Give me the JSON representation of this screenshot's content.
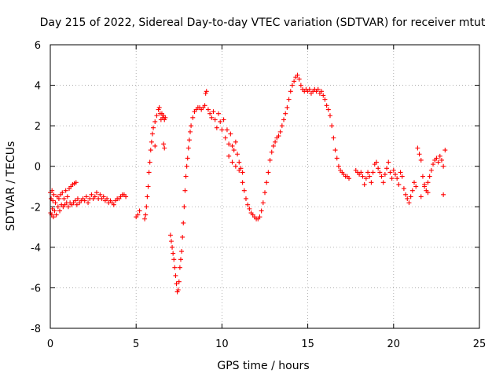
{
  "chart_data": {
    "type": "scatter",
    "title": "Day 215 of 2022, Sidereal Day-to-day VTEC variation (SDTVAR) for receiver mtut",
    "xlabel": "GPS time / hours",
    "ylabel": "SDTVAR / TECUs",
    "xlim": [
      0,
      25
    ],
    "ylim": [
      -8,
      6
    ],
    "xticks": [
      0,
      5,
      10,
      15,
      20,
      25
    ],
    "yticks": [
      -8,
      -6,
      -4,
      -2,
      0,
      2,
      4,
      6
    ],
    "xtick_labels": [
      "0",
      "5",
      "10",
      "15",
      "20",
      "25"
    ],
    "ytick_labels": [
      "-8",
      "-6",
      "-4",
      "-2",
      "0",
      "2",
      "4",
      "6"
    ],
    "grid": true,
    "marker": "+",
    "marker_color": "#ff0000",
    "series": [
      {
        "name": "SDTVAR",
        "points": [
          [
            0.0,
            -1.3
          ],
          [
            0.02,
            -2.3
          ],
          [
            0.05,
            -1.6
          ],
          [
            0.08,
            -2.4
          ],
          [
            0.1,
            -1.2
          ],
          [
            0.12,
            -2.1
          ],
          [
            0.15,
            -1.7
          ],
          [
            0.18,
            -2.5
          ],
          [
            0.2,
            -1.4
          ],
          [
            0.25,
            -2.2
          ],
          [
            0.3,
            -1.8
          ],
          [
            0.35,
            -2.4
          ],
          [
            0.4,
            -1.5
          ],
          [
            0.45,
            -2.0
          ],
          [
            0.5,
            -1.6
          ],
          [
            0.55,
            -2.2
          ],
          [
            0.6,
            -1.4
          ],
          [
            0.65,
            -1.9
          ],
          [
            0.7,
            -1.3
          ],
          [
            0.75,
            -2.0
          ],
          [
            0.8,
            -1.6
          ],
          [
            0.85,
            -1.9
          ],
          [
            0.9,
            -1.2
          ],
          [
            0.95,
            -1.8
          ],
          [
            1.0,
            -1.5
          ],
          [
            1.05,
            -2.0
          ],
          [
            1.1,
            -1.1
          ],
          [
            1.15,
            -1.8
          ],
          [
            1.2,
            -1.0
          ],
          [
            1.25,
            -1.9
          ],
          [
            1.3,
            -0.9
          ],
          [
            1.35,
            -1.8
          ],
          [
            1.4,
            -0.85
          ],
          [
            1.45,
            -1.7
          ],
          [
            1.5,
            -0.8
          ],
          [
            1.55,
            -1.9
          ],
          [
            1.6,
            -1.6
          ],
          [
            1.7,
            -1.8
          ],
          [
            1.8,
            -1.7
          ],
          [
            1.9,
            -1.6
          ],
          [
            2.0,
            -1.7
          ],
          [
            2.1,
            -1.5
          ],
          [
            2.2,
            -1.8
          ],
          [
            2.3,
            -1.6
          ],
          [
            2.4,
            -1.4
          ],
          [
            2.5,
            -1.6
          ],
          [
            2.6,
            -1.5
          ],
          [
            2.7,
            -1.3
          ],
          [
            2.8,
            -1.6
          ],
          [
            2.9,
            -1.4
          ],
          [
            3.0,
            -1.6
          ],
          [
            3.1,
            -1.5
          ],
          [
            3.2,
            -1.7
          ],
          [
            3.3,
            -1.6
          ],
          [
            3.4,
            -1.8
          ],
          [
            3.5,
            -1.7
          ],
          [
            3.6,
            -1.8
          ],
          [
            3.7,
            -1.9
          ],
          [
            3.8,
            -1.7
          ],
          [
            3.9,
            -1.6
          ],
          [
            4.0,
            -1.6
          ],
          [
            4.1,
            -1.5
          ],
          [
            4.2,
            -1.4
          ],
          [
            4.3,
            -1.4
          ],
          [
            4.4,
            -1.5
          ],
          [
            5.0,
            -2.5
          ],
          [
            5.1,
            -2.4
          ],
          [
            5.2,
            -2.2
          ],
          [
            5.5,
            -2.6
          ],
          [
            5.55,
            -2.4
          ],
          [
            5.6,
            -2.0
          ],
          [
            5.65,
            -1.5
          ],
          [
            5.7,
            -1.0
          ],
          [
            5.75,
            -0.3
          ],
          [
            5.8,
            0.2
          ],
          [
            5.85,
            0.8
          ],
          [
            5.9,
            1.2
          ],
          [
            5.95,
            1.6
          ],
          [
            6.0,
            1.9
          ],
          [
            6.1,
            2.2
          ],
          [
            6.2,
            2.5
          ],
          [
            6.3,
            2.8
          ],
          [
            6.35,
            2.9
          ],
          [
            6.4,
            2.6
          ],
          [
            6.45,
            2.3
          ],
          [
            6.5,
            2.6
          ],
          [
            6.55,
            2.4
          ],
          [
            6.6,
            2.5
          ],
          [
            6.65,
            2.3
          ],
          [
            6.7,
            2.4
          ],
          [
            6.1,
            1.0
          ],
          [
            6.6,
            1.1
          ],
          [
            6.65,
            0.9
          ],
          [
            7.0,
            -3.4
          ],
          [
            7.05,
            -3.7
          ],
          [
            7.1,
            -4.0
          ],
          [
            7.15,
            -4.3
          ],
          [
            7.2,
            -4.6
          ],
          [
            7.25,
            -5.0
          ],
          [
            7.3,
            -5.4
          ],
          [
            7.35,
            -5.8
          ],
          [
            7.4,
            -6.2
          ],
          [
            7.45,
            -6.1
          ],
          [
            7.5,
            -5.7
          ],
          [
            7.55,
            -5.0
          ],
          [
            7.6,
            -4.6
          ],
          [
            7.65,
            -4.2
          ],
          [
            7.7,
            -3.5
          ],
          [
            7.75,
            -2.8
          ],
          [
            7.8,
            -2.0
          ],
          [
            7.85,
            -1.2
          ],
          [
            7.9,
            -0.5
          ],
          [
            7.95,
            0.0
          ],
          [
            8.0,
            0.4
          ],
          [
            8.05,
            0.9
          ],
          [
            8.1,
            1.3
          ],
          [
            8.15,
            1.7
          ],
          [
            8.2,
            2.0
          ],
          [
            8.3,
            2.4
          ],
          [
            8.4,
            2.7
          ],
          [
            8.5,
            2.8
          ],
          [
            8.6,
            2.9
          ],
          [
            8.7,
            2.9
          ],
          [
            8.8,
            2.8
          ],
          [
            8.9,
            2.9
          ],
          [
            9.0,
            3.0
          ],
          [
            9.05,
            3.6
          ],
          [
            9.1,
            3.7
          ],
          [
            9.2,
            2.8
          ],
          [
            9.3,
            2.6
          ],
          [
            9.4,
            2.4
          ],
          [
            9.5,
            2.7
          ],
          [
            9.6,
            2.3
          ],
          [
            9.7,
            1.9
          ],
          [
            9.8,
            2.6
          ],
          [
            9.9,
            2.2
          ],
          [
            10.0,
            1.8
          ],
          [
            10.1,
            2.3
          ],
          [
            10.2,
            1.4
          ],
          [
            10.3,
            1.8
          ],
          [
            10.4,
            1.1
          ],
          [
            10.5,
            1.6
          ],
          [
            10.6,
            1.0
          ],
          [
            10.7,
            0.8
          ],
          [
            10.8,
            1.2
          ],
          [
            10.9,
            0.6
          ],
          [
            11.0,
            0.2
          ],
          [
            11.1,
            -0.1
          ],
          [
            11.2,
            -0.3
          ],
          [
            10.4,
            0.5
          ],
          [
            10.6,
            0.2
          ],
          [
            10.8,
            0.0
          ],
          [
            11.0,
            -0.2
          ],
          [
            11.2,
            -0.8
          ],
          [
            11.3,
            -1.2
          ],
          [
            11.4,
            -1.6
          ],
          [
            11.5,
            -1.9
          ],
          [
            11.6,
            -2.1
          ],
          [
            11.7,
            -2.3
          ],
          [
            11.8,
            -2.4
          ],
          [
            11.9,
            -2.5
          ],
          [
            12.0,
            -2.6
          ],
          [
            12.1,
            -2.6
          ],
          [
            12.2,
            -2.5
          ],
          [
            12.3,
            -2.2
          ],
          [
            12.4,
            -1.8
          ],
          [
            12.5,
            -1.3
          ],
          [
            12.6,
            -0.8
          ],
          [
            12.7,
            -0.3
          ],
          [
            12.8,
            0.3
          ],
          [
            12.9,
            0.7
          ],
          [
            13.0,
            1.0
          ],
          [
            13.1,
            1.2
          ],
          [
            13.2,
            1.4
          ],
          [
            13.3,
            1.5
          ],
          [
            13.4,
            1.7
          ],
          [
            13.5,
            2.0
          ],
          [
            13.6,
            2.3
          ],
          [
            13.7,
            2.6
          ],
          [
            13.8,
            2.9
          ],
          [
            13.9,
            3.3
          ],
          [
            14.0,
            3.7
          ],
          [
            14.1,
            4.0
          ],
          [
            14.2,
            4.2
          ],
          [
            14.3,
            4.4
          ],
          [
            14.4,
            4.5
          ],
          [
            14.5,
            4.3
          ],
          [
            14.6,
            4.0
          ],
          [
            14.7,
            3.8
          ],
          [
            14.8,
            3.7
          ],
          [
            14.9,
            3.8
          ],
          [
            15.0,
            3.7
          ],
          [
            15.1,
            3.8
          ],
          [
            15.2,
            3.6
          ],
          [
            15.3,
            3.7
          ],
          [
            15.4,
            3.8
          ],
          [
            15.5,
            3.7
          ],
          [
            15.6,
            3.8
          ],
          [
            15.7,
            3.6
          ],
          [
            15.8,
            3.7
          ],
          [
            15.9,
            3.5
          ],
          [
            16.0,
            3.3
          ],
          [
            16.1,
            3.0
          ],
          [
            16.2,
            2.8
          ],
          [
            16.3,
            2.5
          ],
          [
            16.4,
            2.0
          ],
          [
            16.5,
            1.4
          ],
          [
            16.6,
            0.8
          ],
          [
            16.7,
            0.4
          ],
          [
            16.8,
            0.0
          ],
          [
            16.9,
            -0.2
          ],
          [
            17.0,
            -0.3
          ],
          [
            17.1,
            -0.4
          ],
          [
            17.2,
            -0.5
          ],
          [
            17.3,
            -0.5
          ],
          [
            17.4,
            -0.6
          ],
          [
            17.8,
            -0.2
          ],
          [
            17.9,
            -0.3
          ],
          [
            18.0,
            -0.4
          ],
          [
            18.1,
            -0.3
          ],
          [
            18.2,
            -0.5
          ],
          [
            18.3,
            -0.9
          ],
          [
            18.4,
            -0.6
          ],
          [
            18.5,
            -0.3
          ],
          [
            18.6,
            -0.5
          ],
          [
            18.7,
            -0.8
          ],
          [
            18.8,
            -0.3
          ],
          [
            18.9,
            0.1
          ],
          [
            19.0,
            0.2
          ],
          [
            19.1,
            -0.1
          ],
          [
            19.2,
            -0.3
          ],
          [
            19.3,
            -0.5
          ],
          [
            19.4,
            -0.8
          ],
          [
            19.5,
            -0.4
          ],
          [
            19.6,
            -0.1
          ],
          [
            19.7,
            0.2
          ],
          [
            19.8,
            -0.3
          ],
          [
            19.9,
            -0.6
          ],
          [
            20.0,
            -0.2
          ],
          [
            20.1,
            -0.4
          ],
          [
            20.2,
            -0.6
          ],
          [
            20.3,
            -0.9
          ],
          [
            20.4,
            -0.3
          ],
          [
            20.5,
            -0.5
          ],
          [
            20.6,
            -1.1
          ],
          [
            20.7,
            -1.4
          ],
          [
            20.8,
            -1.6
          ],
          [
            20.9,
            -1.8
          ],
          [
            21.0,
            -1.5
          ],
          [
            21.1,
            -1.2
          ],
          [
            21.2,
            -0.8
          ],
          [
            21.3,
            -1.0
          ],
          [
            21.4,
            0.9
          ],
          [
            21.5,
            0.6
          ],
          [
            21.6,
            0.3
          ],
          [
            21.7,
            -0.5
          ],
          [
            21.8,
            -0.9
          ],
          [
            21.9,
            -1.2
          ],
          [
            22.0,
            -0.8
          ],
          [
            22.1,
            -0.5
          ],
          [
            22.2,
            -0.2
          ],
          [
            22.3,
            0.1
          ],
          [
            22.4,
            0.3
          ],
          [
            22.5,
            0.4
          ],
          [
            22.6,
            0.2
          ],
          [
            22.7,
            0.5
          ],
          [
            22.8,
            0.3
          ],
          [
            22.9,
            0.0
          ],
          [
            23.0,
            0.8
          ],
          [
            22.9,
            -1.4
          ],
          [
            22.0,
            -1.3
          ],
          [
            21.6,
            -1.5
          ],
          [
            21.8,
            -1.0
          ]
        ]
      }
    ]
  }
}
